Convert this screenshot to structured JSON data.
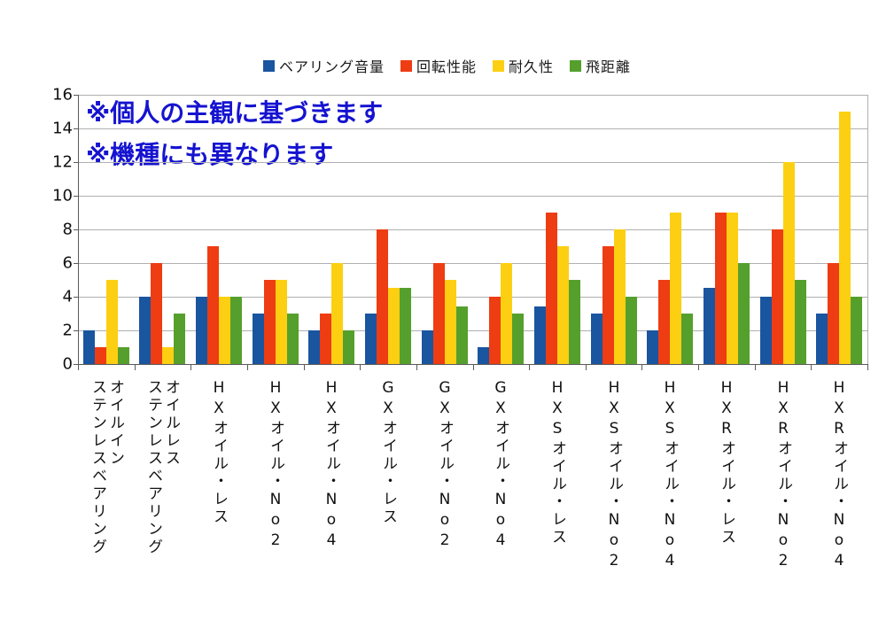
{
  "annotation": {
    "lines": [
      "※個人の主観に基づきます",
      "※機種にも異なります"
    ],
    "color": "#1513d0"
  },
  "chart_data": {
    "type": "bar",
    "title": "",
    "legend_position": "top",
    "grid": true,
    "ylim": [
      0,
      16
    ],
    "yticks": [
      0,
      2,
      4,
      6,
      8,
      10,
      12,
      14,
      16
    ],
    "categories": [
      "オイルインステンレスベアリング",
      "オイルレスステンレスベアリング",
      "HXオイル・レス",
      "HXオイル・No2",
      "HXオイル・No4",
      "GXオイル・レス",
      "GXオイル・No2",
      "GXオイル・No4",
      "HXSオイル・レス",
      "HXSオイル・No2",
      "HXSオイル・No4",
      "HXRオイル・レス",
      "HXRオイル・No2",
      "HXRオイル・No4"
    ],
    "categories_display": [
      [
        "オイルイン",
        "ステンレスベアリング"
      ],
      [
        "オイルレス",
        "ステンレスベアリング"
      ],
      [
        "HXオイル・レス"
      ],
      [
        "HXオイル・No2"
      ],
      [
        "HXオイル・No4"
      ],
      [
        "GXオイル・レス"
      ],
      [
        "GXオイル・No2"
      ],
      [
        "GXオイル・No4"
      ],
      [
        "HXSオイル・レス"
      ],
      [
        "HXSオイル・No2"
      ],
      [
        "HXSオイル・No4"
      ],
      [
        "HXRオイル・レス"
      ],
      [
        "HXRオイル・No2"
      ],
      [
        "HXRオイル・No4"
      ]
    ],
    "series": [
      {
        "name": "ベアリング音量",
        "color": "#1a55a0",
        "values": [
          2,
          4,
          4,
          3,
          2,
          3,
          2,
          1,
          3.4,
          3,
          2,
          4.5,
          4,
          3
        ]
      },
      {
        "name": "回転性能",
        "color": "#ee3c13",
        "values": [
          1,
          6,
          7,
          5,
          3,
          8,
          6,
          4,
          9,
          7,
          5,
          9,
          8,
          6
        ]
      },
      {
        "name": "耐久性",
        "color": "#fccf12",
        "values": [
          5,
          1,
          4,
          5,
          6,
          4.5,
          5,
          6,
          7,
          8,
          9,
          9,
          12,
          15
        ]
      },
      {
        "name": "飛距離",
        "color": "#55a02c",
        "values": [
          1,
          3,
          4,
          3,
          2,
          4.5,
          3.4,
          3,
          5,
          4,
          3,
          6,
          5,
          4
        ]
      }
    ]
  }
}
